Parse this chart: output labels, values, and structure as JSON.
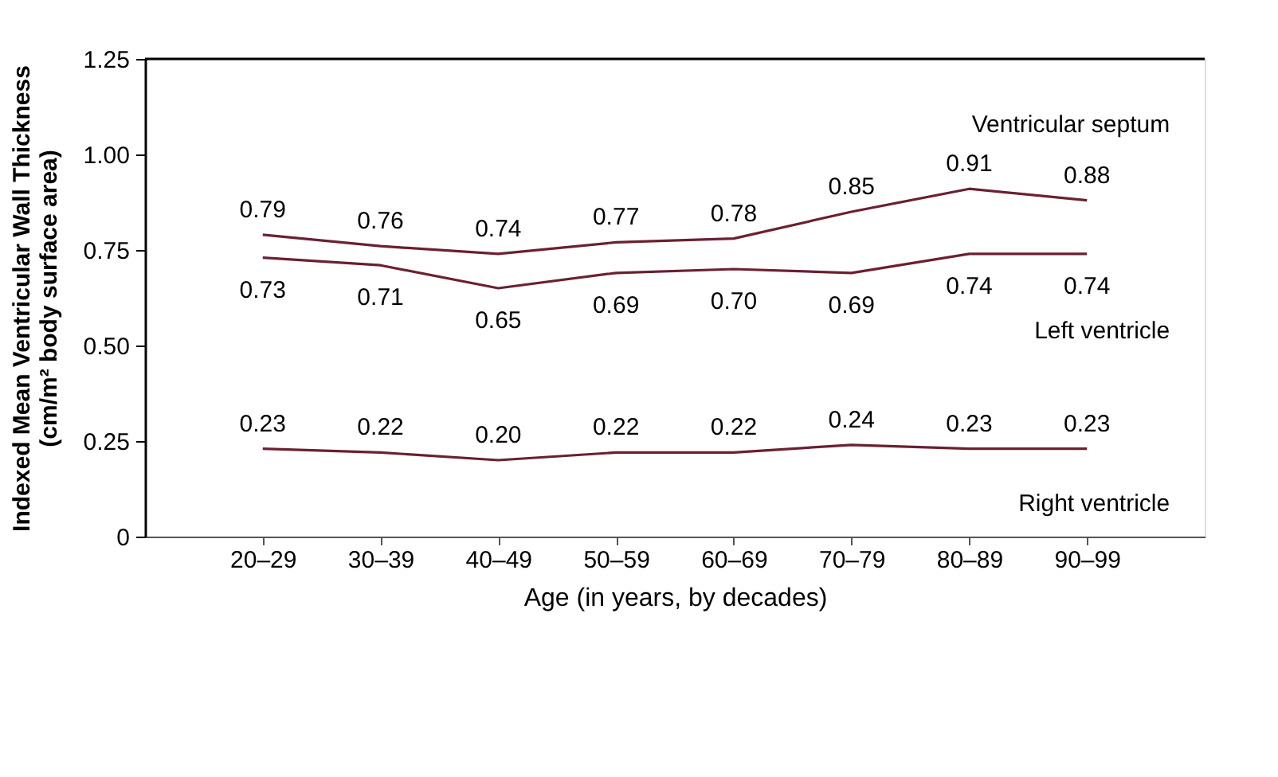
{
  "chart_data": {
    "type": "line",
    "xlabel": "Age (in years, by decades)",
    "ylabel": "Indexed Mean Ventricular Wall Thickness\n(cm/m² body surface area)",
    "categories": [
      "20–29",
      "30–39",
      "40–49",
      "50–59",
      "60–69",
      "70–79",
      "80–89",
      "90–99"
    ],
    "series": [
      {
        "name": "Ventricular septum",
        "color": "#6b2030",
        "values": [
          0.79,
          0.76,
          0.74,
          0.77,
          0.78,
          0.85,
          0.91,
          0.88
        ],
        "value_labels": [
          "0.79",
          "0.76",
          "0.74",
          "0.77",
          "0.78",
          "0.85",
          "0.91",
          "0.88"
        ]
      },
      {
        "name": "Left ventricle",
        "color": "#6b2030",
        "values": [
          0.73,
          0.71,
          0.65,
          0.69,
          0.7,
          0.69,
          0.74,
          0.74
        ],
        "value_labels": [
          "0.73",
          "0.71",
          "0.65",
          "0.69",
          "0.70",
          "0.69",
          "0.74",
          "0.74"
        ]
      },
      {
        "name": "Right ventricle",
        "color": "#6b2030",
        "values": [
          0.23,
          0.22,
          0.2,
          0.22,
          0.22,
          0.24,
          0.23,
          0.23
        ],
        "value_labels": [
          "0.23",
          "0.22",
          "0.20",
          "0.22",
          "0.22",
          "0.24",
          "0.23",
          "0.23"
        ]
      }
    ],
    "ylim": [
      0,
      1.25
    ],
    "yticks": [
      0,
      {
        "value": 0.25,
        "label": "0.25"
      },
      {
        "value": 0.5,
        "label": "0.50"
      },
      {
        "value": 0.75,
        "label": "0.75"
      },
      {
        "value": 1.0,
        "label": "1.00"
      },
      {
        "value": 1.25,
        "label": "1.25"
      }
    ],
    "grid": false,
    "marker": "none",
    "line_style": "solid"
  }
}
